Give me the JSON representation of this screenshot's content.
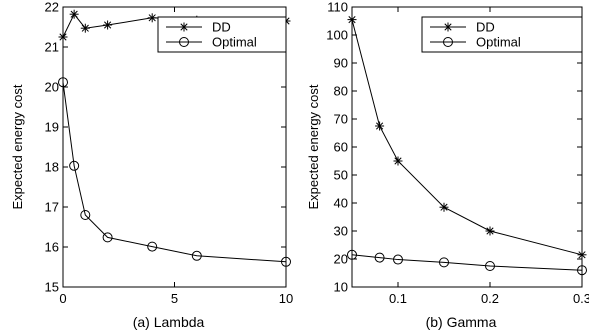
{
  "chart_data": [
    {
      "type": "line",
      "caption": "(a)  Lambda",
      "xlabel": "",
      "ylabel": "Expected energy cost",
      "xlim": [
        0,
        10
      ],
      "ylim": [
        15,
        22
      ],
      "xticks": [
        0,
        5,
        10
      ],
      "yticks": [
        15,
        16,
        17,
        18,
        19,
        20,
        21,
        22
      ],
      "grid": false,
      "legend_position": "top-right",
      "series": [
        {
          "name": "DD",
          "marker": "star",
          "x": [
            0,
            0.5,
            1,
            2,
            4,
            6,
            10
          ],
          "y": [
            21.25,
            21.82,
            21.47,
            21.55,
            21.73,
            21.67,
            21.65
          ]
        },
        {
          "name": "Optimal",
          "marker": "circle",
          "x": [
            0,
            0.5,
            1,
            2,
            4,
            6,
            10
          ],
          "y": [
            20.12,
            18.03,
            16.8,
            16.24,
            16.01,
            15.78,
            15.63
          ]
        }
      ]
    },
    {
      "type": "line",
      "caption": "(b)  Gamma",
      "xlabel": "",
      "ylabel": "Expected energy cost",
      "xlim": [
        0.05,
        0.3
      ],
      "ylim": [
        10,
        110
      ],
      "xticks": [
        0.1,
        0.2,
        0.3
      ],
      "yticks": [
        10,
        20,
        30,
        40,
        50,
        60,
        70,
        80,
        90,
        100,
        110
      ],
      "grid": false,
      "legend_position": "top-right",
      "series": [
        {
          "name": "DD",
          "marker": "star",
          "x": [
            0.05,
            0.08,
            0.1,
            0.15,
            0.2,
            0.3
          ],
          "y": [
            105.5,
            67.5,
            55,
            38.5,
            30,
            21.5
          ]
        },
        {
          "name": "Optimal",
          "marker": "circle",
          "x": [
            0.05,
            0.08,
            0.1,
            0.15,
            0.2,
            0.3
          ],
          "y": [
            21.5,
            20.5,
            19.8,
            18.8,
            17.5,
            16
          ]
        }
      ]
    }
  ]
}
